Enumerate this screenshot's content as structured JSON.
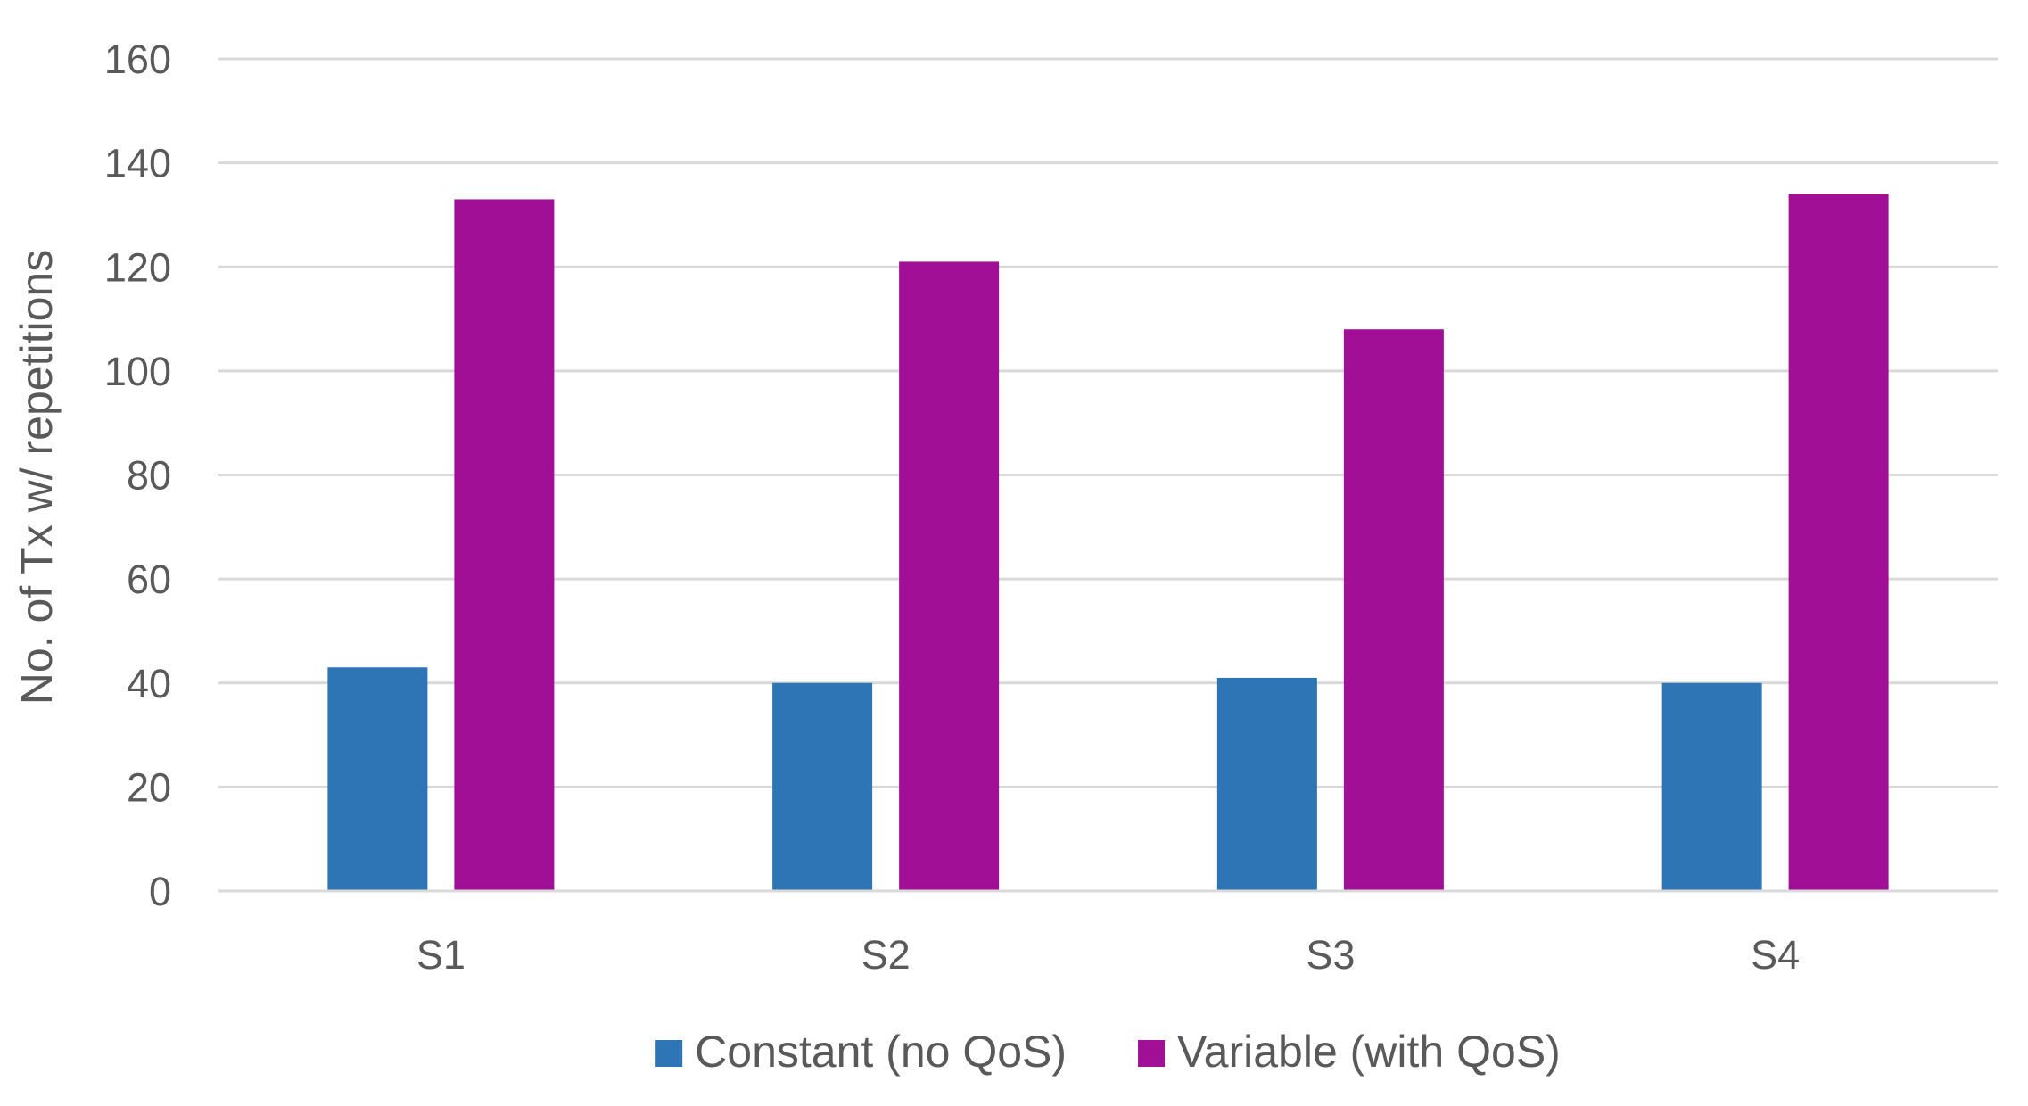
{
  "chart_data": {
    "type": "bar",
    "title": "",
    "xlabel": "",
    "ylabel": "No. of Tx w/ repetitions",
    "categories": [
      "S1",
      "S2",
      "S3",
      "S4"
    ],
    "series": [
      {
        "name": "Constant (no QoS)",
        "color": "#2e75b6",
        "values": [
          43,
          40,
          41,
          40
        ]
      },
      {
        "name": "Variable (with QoS)",
        "color": "#a10f96",
        "values": [
          133,
          121,
          108,
          134
        ]
      }
    ],
    "ylim": [
      0,
      160
    ],
    "yticks": [
      0,
      20,
      40,
      60,
      80,
      100,
      120,
      140,
      160
    ],
    "grid": true,
    "legend_position": "bottom"
  }
}
